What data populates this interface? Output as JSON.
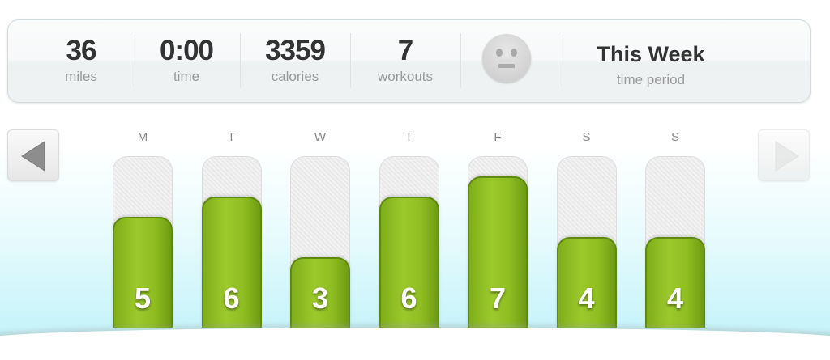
{
  "summary": {
    "stats": [
      {
        "value": "36",
        "label": "miles"
      },
      {
        "value": "0:00",
        "label": "time"
      },
      {
        "value": "3359",
        "label": "calories"
      },
      {
        "value": "7",
        "label": "workouts"
      }
    ],
    "mood_icon": "neutral-face-icon",
    "period": {
      "value": "This Week",
      "label": "time period"
    }
  },
  "chart_data": {
    "type": "bar",
    "categories": [
      "M",
      "T",
      "W",
      "T",
      "F",
      "S",
      "S"
    ],
    "values": [
      5,
      6,
      3,
      6,
      7,
      4,
      4
    ],
    "ylim": [
      0,
      8
    ]
  },
  "colors": {
    "bar": "#94c224",
    "track": "#eeeeee"
  },
  "nav": {
    "prev_icon": "left-arrow-icon",
    "next_icon": "right-arrow-icon"
  }
}
